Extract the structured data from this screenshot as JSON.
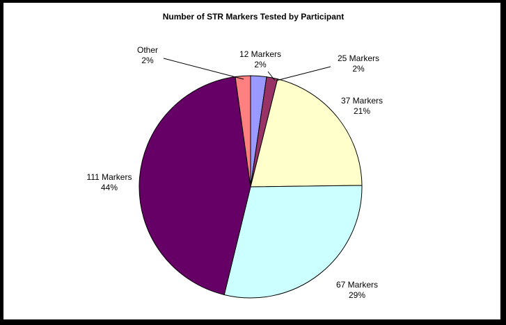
{
  "chart_data": {
    "type": "pie",
    "title": "Number of STR Markers Tested by Participant",
    "start_angle_deg": 0,
    "direction": "clockwise",
    "slices": [
      {
        "label": "12 Markers",
        "percent_label": "2%",
        "value": 2.3,
        "color": "#9999ff"
      },
      {
        "label": "25 Markers",
        "percent_label": "2%",
        "value": 1.6,
        "color": "#993366"
      },
      {
        "label": "37 Markers",
        "percent_label": "21%",
        "value": 20.9,
        "color": "#ffffcc"
      },
      {
        "label": "67 Markers",
        "percent_label": "29%",
        "value": 29.0,
        "color": "#ccffff"
      },
      {
        "label": "111 Markers",
        "percent_label": "44%",
        "value": 44.0,
        "color": "#660066"
      },
      {
        "label": "Other",
        "percent_label": "2%",
        "value": 2.2,
        "color": "#ff8080"
      }
    ]
  }
}
